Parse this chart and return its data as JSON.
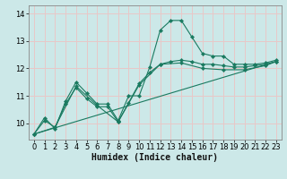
{
  "title": "",
  "xlabel": "Humidex (Indice chaleur)",
  "ylabel": "",
  "bg_color": "#cce8e8",
  "grid_color": "#e8c8c8",
  "line_color": "#1a7a60",
  "xlim": [
    -0.5,
    23.5
  ],
  "ylim": [
    9.4,
    14.3
  ],
  "yticks": [
    10,
    11,
    12,
    13,
    14
  ],
  "xticks": [
    0,
    1,
    2,
    3,
    4,
    5,
    6,
    7,
    8,
    9,
    10,
    11,
    12,
    13,
    14,
    15,
    16,
    17,
    18,
    19,
    20,
    21,
    22,
    23
  ],
  "lines": [
    {
      "x": [
        0,
        1,
        2,
        3,
        4,
        5,
        6,
        7,
        8,
        9,
        10,
        11,
        12,
        13,
        14,
        15,
        16,
        17,
        18,
        19,
        20,
        21,
        22,
        23
      ],
      "y": [
        9.6,
        10.2,
        9.8,
        10.8,
        11.5,
        11.1,
        10.7,
        10.7,
        10.1,
        11.0,
        11.0,
        12.05,
        13.4,
        13.75,
        13.75,
        13.15,
        12.55,
        12.45,
        12.45,
        12.15,
        12.15,
        12.15,
        12.2,
        12.3
      ]
    },
    {
      "x": [
        0,
        1,
        2,
        3,
        4,
        5,
        6,
        7,
        8,
        9,
        10,
        11,
        12,
        13,
        14,
        15,
        16,
        17,
        18,
        19,
        20,
        21,
        22,
        23
      ],
      "y": [
        9.6,
        10.1,
        9.85,
        10.7,
        11.3,
        10.9,
        10.6,
        10.6,
        10.05,
        10.75,
        11.45,
        11.85,
        12.15,
        12.25,
        12.3,
        12.25,
        12.15,
        12.15,
        12.1,
        12.05,
        12.05,
        12.1,
        12.15,
        12.25
      ]
    },
    {
      "x": [
        0,
        2,
        4,
        6,
        8,
        10,
        12,
        14,
        16,
        18,
        20,
        22,
        23
      ],
      "y": [
        9.6,
        9.85,
        11.35,
        10.65,
        10.05,
        11.4,
        12.15,
        12.2,
        12.0,
        11.95,
        11.95,
        12.1,
        12.25
      ]
    },
    {
      "x": [
        0,
        23
      ],
      "y": [
        9.6,
        12.25
      ]
    }
  ],
  "tick_fontsize": 6,
  "xlabel_fontsize": 7
}
